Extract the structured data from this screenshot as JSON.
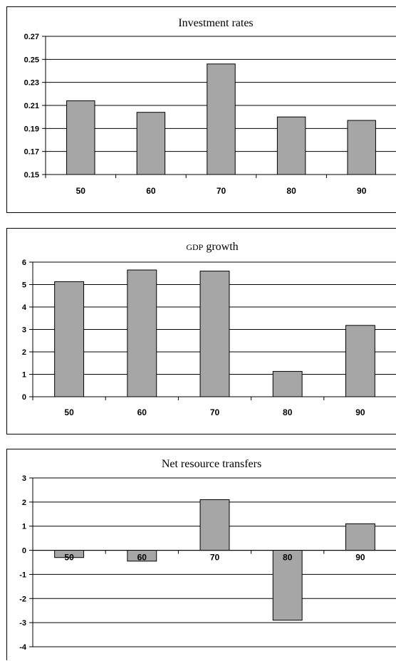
{
  "chart_data": [
    {
      "type": "bar",
      "title": "Investment rates",
      "categories": [
        "50",
        "60",
        "70",
        "80",
        "90"
      ],
      "values": [
        0.214,
        0.204,
        0.246,
        0.2,
        0.197
      ],
      "ylim": [
        0.15,
        0.27
      ],
      "yticks": [
        "0.27",
        "0.25",
        "0.23",
        "0.21",
        "0.19",
        "0.17",
        "0.15"
      ],
      "grid": true,
      "bar_color": "#a6a6a6"
    },
    {
      "type": "bar",
      "title": "GDP growth",
      "categories": [
        "50",
        "60",
        "70",
        "80",
        "90"
      ],
      "values": [
        5.13,
        5.65,
        5.6,
        1.13,
        3.18
      ],
      "ylim": [
        0,
        6
      ],
      "yticks": [
        "6",
        "5",
        "4",
        "3",
        "2",
        "1",
        "0"
      ],
      "grid": true,
      "bar_color": "#a6a6a6"
    },
    {
      "type": "bar",
      "title": "Net resource transfers",
      "categories": [
        "50",
        "60",
        "70",
        "80",
        "90"
      ],
      "values": [
        -0.3,
        -0.45,
        2.1,
        -2.9,
        1.1
      ],
      "ylim": [
        -4,
        3
      ],
      "yticks": [
        "3",
        "2",
        "1",
        "0",
        "-1",
        "-2",
        "-3",
        "-4"
      ],
      "grid": true,
      "bar_color": "#a6a6a6"
    }
  ]
}
